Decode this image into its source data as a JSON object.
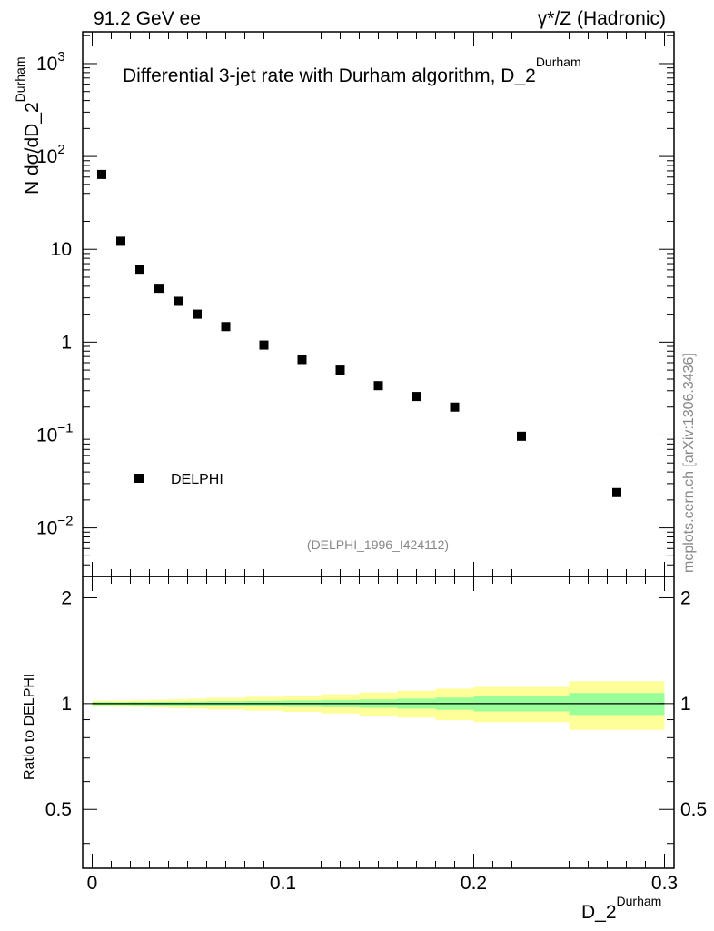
{
  "header": {
    "left": "91.2 GeV ee",
    "right": "γ*/Z (Hadronic)"
  },
  "side_label": "mcplots.cern.ch [arXiv:1306.3436]",
  "chart_data": [
    {
      "type": "scatter",
      "title_main": "Differential 3-jet rate with Durham algorithm, D_2",
      "title_sup": "Durham",
      "ylabel_main": "N  dσ/dD_2",
      "ylabel_sup": "Durham",
      "yscale": "log",
      "xlim": [
        -0.005,
        0.305
      ],
      "ylim": [
        0.003,
        2200
      ],
      "y_ticks": [
        {
          "value": 0.01,
          "base": "10",
          "exp": "−2"
        },
        {
          "value": 0.1,
          "base": "10",
          "exp": "−1"
        },
        {
          "value": 1,
          "base": "1",
          "exp": ""
        },
        {
          "value": 10,
          "base": "10",
          "exp": ""
        },
        {
          "value": 100,
          "base": "10",
          "exp": "2"
        },
        {
          "value": 1000,
          "base": "10",
          "exp": "3"
        }
      ],
      "legend": {
        "label": "DELPHI",
        "position": "lower-left"
      },
      "watermark": "(DELPHI_1996_I424112)",
      "series": [
        {
          "name": "DELPHI",
          "x": [
            0.005,
            0.015,
            0.025,
            0.035,
            0.045,
            0.055,
            0.07,
            0.09,
            0.11,
            0.13,
            0.15,
            0.17,
            0.19,
            0.225,
            0.275
          ],
          "y": [
            64,
            12.2,
            6.1,
            3.8,
            2.75,
            2.0,
            1.47,
            0.93,
            0.65,
            0.5,
            0.34,
            0.26,
            0.2,
            0.097,
            0.024
          ]
        }
      ]
    },
    {
      "type": "area",
      "ylabel": "Ratio to DELPHI",
      "xlabel_main": "D_2",
      "xlabel_sup": "Durham",
      "xlim": [
        -0.005,
        0.305
      ],
      "ylim": [
        0.34,
        2.3
      ],
      "x_ticks": [
        "0",
        "0.1",
        "0.2",
        "0.3"
      ],
      "x_tick_values": [
        0,
        0.1,
        0.2,
        0.3
      ],
      "y_ticks": [
        "0.5",
        "1",
        "2"
      ],
      "y_tick_values": [
        0.5,
        1,
        2
      ],
      "bin_edges": [
        0,
        0.01,
        0.02,
        0.03,
        0.04,
        0.05,
        0.06,
        0.08,
        0.1,
        0.12,
        0.14,
        0.16,
        0.18,
        0.2,
        0.25,
        0.3
      ],
      "stat_band": [
        0.01,
        0.01,
        0.011,
        0.012,
        0.013,
        0.014,
        0.016,
        0.018,
        0.021,
        0.024,
        0.028,
        0.033,
        0.04,
        0.05,
        0.072
      ],
      "total_band": [
        0.02,
        0.021,
        0.023,
        0.026,
        0.029,
        0.033,
        0.038,
        0.045,
        0.053,
        0.063,
        0.075,
        0.088,
        0.103,
        0.115,
        0.158
      ],
      "reference": 1.0
    }
  ]
}
